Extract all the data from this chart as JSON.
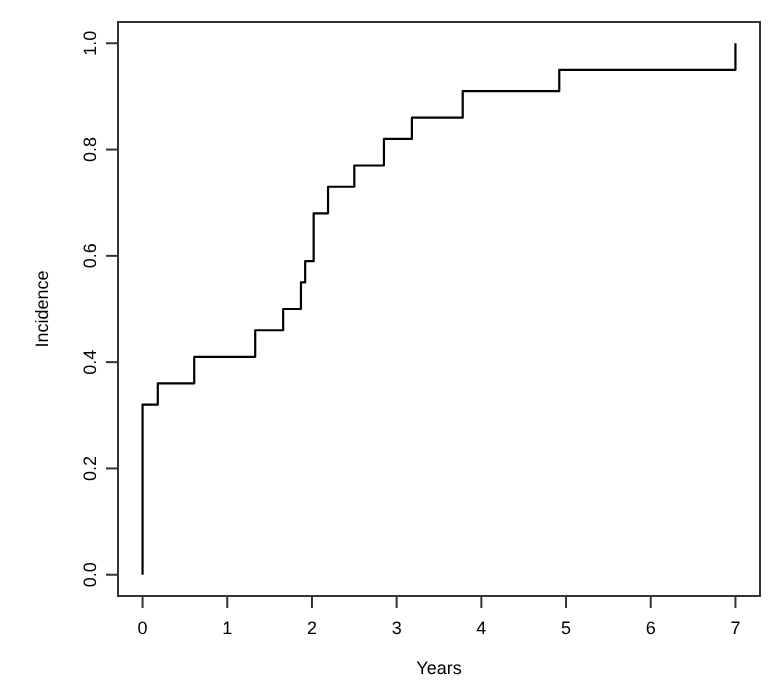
{
  "chart_data": {
    "type": "step",
    "xlabel": "Years",
    "ylabel": "Incidence",
    "x": [
      0,
      0,
      0.18,
      0.61,
      1.33,
      1.66,
      1.87,
      1.92,
      2.02,
      2.19,
      2.5,
      2.85,
      3.18,
      3.78,
      4.92,
      7
    ],
    "series": [
      {
        "color": "#000000",
        "values": [
          0,
          0.32,
          0.36,
          0.41,
          0.46,
          0.5,
          0.55,
          0.59,
          0.68,
          0.73,
          0.77,
          0.82,
          0.86,
          0.91,
          0.95,
          1
        ]
      }
    ],
    "xlim": [
      -0.29,
      7.29
    ],
    "ylim": [
      -0.04,
      1.04
    ],
    "xticks": [
      0,
      1,
      2,
      3,
      4,
      5,
      6,
      7
    ],
    "yticks": [
      {
        "value": 0,
        "label": "0.0"
      },
      {
        "value": 0.2,
        "label": "0.2"
      },
      {
        "value": 0.4,
        "label": "0.4"
      },
      {
        "value": 0.6,
        "label": "0.6"
      },
      {
        "value": 0.8,
        "label": "0.8"
      },
      {
        "value": 1,
        "label": "1.0"
      }
    ],
    "line_style": "solid"
  }
}
